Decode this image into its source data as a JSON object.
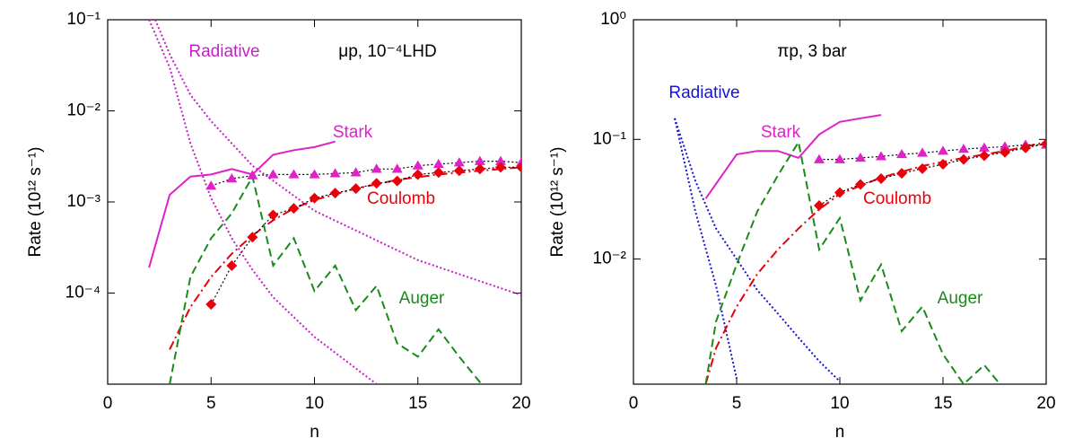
{
  "chart_data": [
    {
      "type": "line",
      "log_y": true,
      "annotation": "μp, 10⁻⁴LHD",
      "x_label": "n",
      "y_label": "Rate (10¹² s⁻¹)",
      "xlim": [
        0,
        20
      ],
      "xticks": [
        0,
        5,
        10,
        15,
        20
      ],
      "ylim": [
        1e-05,
        0.1
      ],
      "yticks": [
        {
          "value": 0.0001,
          "label": "10⁻⁴"
        },
        {
          "value": 0.001,
          "label": "10⁻³"
        },
        {
          "value": 0.01,
          "label": "10⁻²"
        },
        {
          "value": 0.1,
          "label": "10⁻¹"
        }
      ],
      "series": [
        {
          "name": "Radiative",
          "color": "#c81ec8",
          "style": "dotted",
          "x": [
            2,
            3,
            4,
            5,
            6,
            7,
            8,
            10,
            13
          ],
          "values": [
            0.1,
            0.03,
            0.0044,
            0.0011,
            0.0004,
            0.00018,
            9e-05,
            3.3e-05,
            1e-05
          ]
        },
        {
          "color": "#c81ec8",
          "style": "dotted",
          "x": [
            2.3,
            3,
            4,
            5,
            7,
            10,
            15,
            20
          ],
          "values": [
            0.1,
            0.042,
            0.015,
            0.0077,
            0.0025,
            0.0008,
            0.00023,
            9.5e-05
          ]
        },
        {
          "name": "Stark",
          "color": "#e020c8",
          "style": "solid",
          "x": [
            2,
            3,
            4,
            5,
            6,
            7,
            8,
            9,
            10,
            11
          ],
          "values": [
            0.00019,
            0.0012,
            0.0019,
            0.002,
            0.0023,
            0.002,
            0.0033,
            0.0037,
            0.004,
            0.0046
          ]
        },
        {
          "name": "Coulomb",
          "color": "#e8000a",
          "style": "dashdot",
          "x": [
            3,
            4,
            5,
            6,
            7,
            8,
            9,
            10,
            12,
            14,
            16,
            18,
            20
          ],
          "values": [
            2.4e-05,
            7e-05,
            0.00015,
            0.00027,
            0.00043,
            0.00063,
            0.00085,
            0.00105,
            0.0014,
            0.00175,
            0.002,
            0.0022,
            0.0024
          ]
        },
        {
          "name": "Auger",
          "color": "#1a8a1a",
          "style": "dashed",
          "x": [
            3,
            4,
            5,
            6,
            7,
            8,
            9,
            10,
            11,
            12,
            13,
            14,
            15,
            16,
            17,
            18,
            19
          ],
          "values": [
            1e-05,
            0.00015,
            0.0004,
            0.00075,
            0.0019,
            0.0002,
            0.0004,
            0.000105,
            0.0002,
            6.5e-05,
            0.00012,
            2.8e-05,
            2e-05,
            4e-05,
            2e-05,
            1.05e-05,
            6e-06
          ]
        },
        {
          "color": "#e020c8",
          "marker": "triangle",
          "style": "dotted",
          "line_color": "#000000",
          "x": [
            5,
            6,
            7,
            8,
            9,
            10,
            11,
            12,
            13,
            14,
            15,
            16,
            17,
            18,
            19,
            20
          ],
          "values": [
            0.0015,
            0.0018,
            0.00195,
            0.002,
            0.002,
            0.002,
            0.00205,
            0.0021,
            0.0023,
            0.0023,
            0.0025,
            0.0026,
            0.0027,
            0.0028,
            0.0028,
            0.0027
          ]
        },
        {
          "color": "#e8000a",
          "marker": "diamond",
          "style": "dotted",
          "line_color": "#000000",
          "x": [
            5,
            6,
            7,
            8,
            9,
            10,
            11,
            12,
            13,
            14,
            15,
            16,
            17,
            18,
            19,
            20
          ],
          "values": [
            7.5e-05,
            0.0002,
            0.00041,
            0.00072,
            0.00085,
            0.0011,
            0.00125,
            0.0014,
            0.0016,
            0.0017,
            0.002,
            0.0021,
            0.0022,
            0.0023,
            0.0024,
            0.0024
          ]
        }
      ]
    },
    {
      "type": "line",
      "log_y": true,
      "annotation": "πp, 3 bar",
      "x_label": "n",
      "y_label": "Rate (10¹² s⁻¹)",
      "xlim": [
        0,
        20
      ],
      "xticks": [
        0,
        5,
        10,
        15,
        20
      ],
      "ylim": [
        0.0009,
        1
      ],
      "yticks": [
        {
          "value": 0.01,
          "label": "10⁻²"
        },
        {
          "value": 0.1,
          "label": "10⁻¹"
        },
        {
          "value": 1,
          "label": "10⁰"
        }
      ],
      "series": [
        {
          "name": "Radiative",
          "color": "#1414d2",
          "style": "dotted",
          "x": [
            2,
            3,
            4,
            5
          ],
          "values": [
            0.15,
            0.025,
            0.006,
            0.001
          ]
        },
        {
          "color": "#1414d2",
          "style": "dotted",
          "x": [
            2,
            3,
            4,
            5,
            6,
            7,
            8,
            9,
            10
          ],
          "values": [
            0.15,
            0.045,
            0.018,
            0.01,
            0.0055,
            0.0035,
            0.0022,
            0.0014,
            0.00095
          ]
        },
        {
          "name": "Stark",
          "color": "#e020c8",
          "style": "solid",
          "x": [
            3.5,
            5,
            6,
            7,
            8,
            9,
            10,
            11,
            12
          ],
          "values": [
            0.032,
            0.075,
            0.08,
            0.08,
            0.07,
            0.11,
            0.14,
            0.15,
            0.16
          ]
        },
        {
          "name": "Coulomb",
          "color": "#e8000a",
          "style": "dashdot",
          "x": [
            3.5,
            4,
            5,
            6,
            7,
            8,
            9,
            10,
            12,
            14,
            16,
            18,
            20
          ],
          "values": [
            0.0009,
            0.0018,
            0.004,
            0.0075,
            0.012,
            0.018,
            0.026,
            0.035,
            0.048,
            0.06,
            0.07,
            0.08,
            0.095
          ]
        },
        {
          "name": "Auger",
          "color": "#1a8a1a",
          "style": "dashed",
          "x": [
            3.5,
            4,
            5,
            6,
            7,
            8,
            9,
            10,
            11,
            12,
            13,
            14,
            15,
            16,
            17,
            18
          ],
          "values": [
            0.0009,
            0.003,
            0.009,
            0.025,
            0.05,
            0.095,
            0.012,
            0.022,
            0.0045,
            0.009,
            0.0025,
            0.004,
            0.0016,
            0.0009,
            0.0013,
            0.0008
          ]
        },
        {
          "color": "#e020c8",
          "marker": "triangle",
          "style": "dotted",
          "line_color": "#000000",
          "x": [
            9,
            10,
            11,
            12,
            13,
            14,
            15,
            16,
            17,
            18,
            19,
            20
          ],
          "values": [
            0.068,
            0.068,
            0.07,
            0.072,
            0.075,
            0.077,
            0.08,
            0.083,
            0.085,
            0.087,
            0.09,
            0.09
          ]
        },
        {
          "color": "#e8000a",
          "marker": "diamond",
          "style": "dotted",
          "line_color": "#000000",
          "x": [
            9,
            10,
            11,
            12,
            13,
            14,
            15,
            16,
            17,
            18,
            19,
            20
          ],
          "values": [
            0.028,
            0.036,
            0.042,
            0.047,
            0.052,
            0.057,
            0.062,
            0.068,
            0.073,
            0.078,
            0.085,
            0.092
          ]
        }
      ]
    }
  ]
}
